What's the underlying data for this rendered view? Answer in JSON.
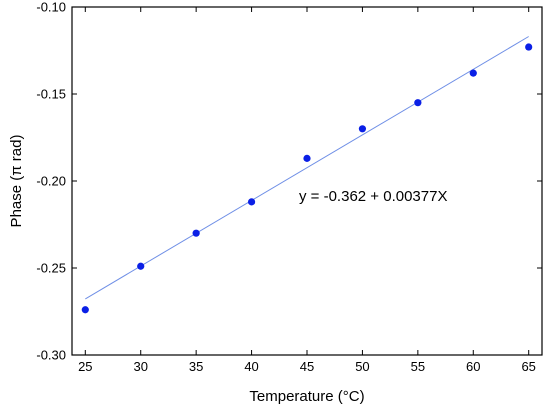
{
  "chart_data": {
    "type": "scatter",
    "title": "",
    "xlabel": "Temperature (°C)",
    "ylabel": "Phase (π rad)",
    "xlim": [
      23.8,
      66.2
    ],
    "ylim": [
      -0.3,
      -0.1
    ],
    "xticks": [
      25,
      30,
      35,
      40,
      45,
      50,
      55,
      60,
      65
    ],
    "xtick_labels": [
      "25",
      "30",
      "35",
      "40",
      "45",
      "50",
      "55",
      "60",
      "65"
    ],
    "yticks": [
      -0.3,
      -0.25,
      -0.2,
      -0.15,
      -0.1
    ],
    "ytick_labels": [
      "-0.30",
      "-0.25",
      "-0.20",
      "-0.15",
      "-0.10"
    ],
    "grid": false,
    "series": [
      {
        "x": [
          25,
          30,
          35,
          40,
          45,
          50,
          55,
          60,
          65
        ],
        "y": [
          -0.274,
          -0.249,
          -0.23,
          -0.212,
          -0.187,
          -0.17,
          -0.155,
          -0.138,
          -0.123
        ]
      }
    ],
    "fit": {
      "intercept": -0.362,
      "slope": 0.00377,
      "x_range": [
        25,
        65
      ],
      "label": "y  = -0.362 + 0.00377X"
    },
    "colors": {
      "points": "#0a1fe6",
      "fit_line": "#6f8fe6",
      "axes": "#000000"
    }
  }
}
